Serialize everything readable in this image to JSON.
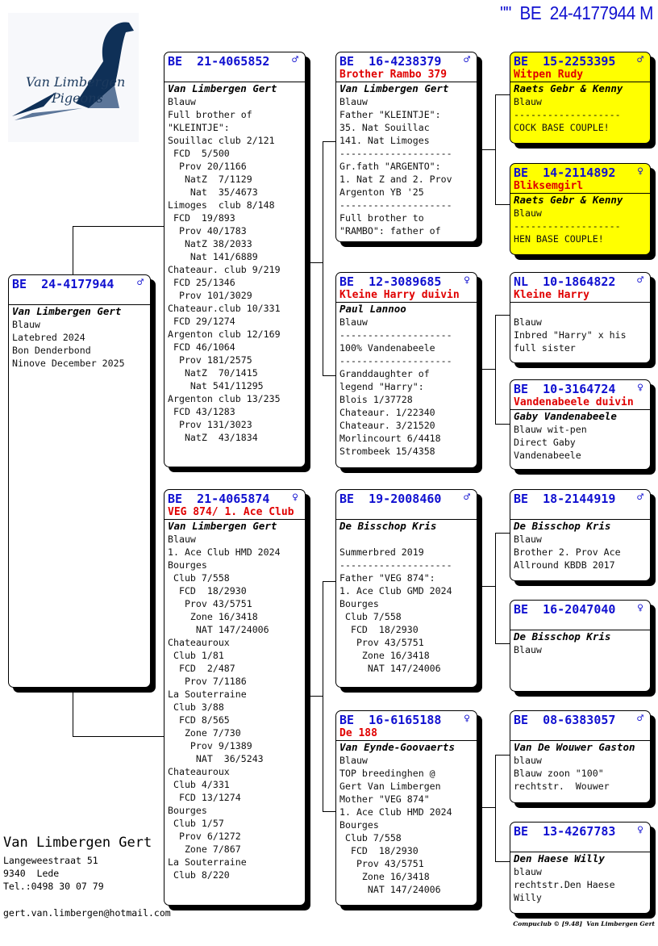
{
  "title": "\"\"  BE  24-4177944 M",
  "logo": {
    "line1": "Van Limbergen",
    "line2": "Pigeons",
    "colors": [
      "#0f3057",
      "#5c7699"
    ]
  },
  "colors": {
    "ring": "#1010d0",
    "name": "#e00000",
    "highlight": "#ffff00"
  },
  "pedigree": [
    {
      "role": "subject",
      "country": "BE",
      "ring": "24-4177944",
      "sex": "♂",
      "name": "",
      "owner": "Van Limbergen Gert",
      "lines": [
        "Blauw",
        "Latebred 2024",
        "Bon Denderbond",
        "Ninove December 2025"
      ]
    },
    {
      "role": "father",
      "country": "BE",
      "ring": "21-4065852",
      "sex": "♂",
      "name": "",
      "owner": "Van Limbergen Gert",
      "lines": [
        "Blauw",
        "Full brother of",
        "\"KLEINTJE\":",
        "Souillac club 2/121",
        " FCD  5/500",
        "  Prov 20/1166",
        "   NatZ  7/1129",
        "    Nat  35/4673",
        "Limoges  club 8/148",
        " FCD  19/893",
        "  Prov 40/1783",
        "   NatZ 38/2033",
        "    Nat 141/6889",
        "Chateaur. club 9/219",
        " FCD 25/1346",
        "  Prov 101/3029",
        "Chateaur.club 10/331",
        " FCD 29/1274",
        "Argenton club 12/169",
        " FCD 46/1064",
        "  Prov 181/2575",
        "   NatZ  70/1415",
        "    Nat 541/11295",
        "Argenton club 13/235",
        " FCD 43/1283",
        "  Prov 131/3023",
        "   NatZ  43/1834"
      ]
    },
    {
      "role": "mother",
      "country": "BE",
      "ring": "21-4065874",
      "sex": "♀",
      "name": "VEG 874/ 1. Ace Club",
      "owner": "Van Limbergen Gert",
      "lines": [
        "Blauw",
        "1. Ace Club HMD 2024",
        "Bourges",
        " Club 7/558",
        "  FCD  18/2930",
        "   Prov 43/5751",
        "    Zone 16/3418",
        "     NAT 147/24006",
        "Chateauroux",
        " Club 1/81",
        "  FCD  2/487",
        "   Prov 7/1186",
        "La Souterraine",
        " Club 3/88",
        "  FCD 8/565",
        "   Zone 7/730",
        "    Prov 9/1389",
        "     NAT  36/5243",
        "Chateauroux",
        " Club 4/331",
        "  FCD 13/1274",
        "Bourges",
        " Club 1/57",
        "  Prov 6/1272",
        "   Zone 7/867",
        "La Souterraine",
        " Club 8/220"
      ]
    },
    {
      "role": "father-father",
      "country": "BE",
      "ring": "16-4238379",
      "sex": "♂",
      "name": "Brother Rambo 379",
      "owner": "Van Limbergen Gert",
      "lines": [
        "Blauw",
        "Father \"KLEINTJE\":",
        "35. Nat Souillac",
        "141. Nat Limoges",
        "--------------------",
        "Gr.fath \"ARGENTO\":",
        "1. Nat Z and 2. Prov",
        "Argenton YB '25",
        "--------------------",
        "Full brother to",
        "\"RAMBO\": father of"
      ]
    },
    {
      "role": "father-mother",
      "country": "BE",
      "ring": "12-3089685",
      "sex": "♀",
      "name": "Kleine Harry duivin",
      "owner": "Paul Lannoo",
      "lines": [
        "Blauw",
        "--------------------",
        "100% Vandenabeele",
        "--------------------",
        "Granddaughter of",
        "legend \"Harry\":",
        "Blois 1/37728",
        "Chateaur. 1/22340",
        "Chateaur. 3/21520",
        "Morlincourt 6/4418",
        "Strombeek 15/4358"
      ]
    },
    {
      "role": "mother-father",
      "country": "BE",
      "ring": "19-2008460",
      "sex": "♂",
      "name": "",
      "owner": "De Bisschop Kris",
      "lines": [
        "",
        "Summerbred 2019",
        "--------------------",
        "Father \"VEG 874\":",
        "1. Ace Club GMD 2024",
        "Bourges",
        " Club 7/558",
        "  FCD  18/2930",
        "   Prov 43/5751",
        "    Zone 16/3418",
        "     NAT 147/24006"
      ]
    },
    {
      "role": "mother-mother",
      "country": "BE",
      "ring": "16-6165188",
      "sex": "♀",
      "name": "De 188",
      "owner": "Van Eynde-Goovaerts",
      "lines": [
        "Blauw",
        "TOP breedinghen @",
        "Gert Van Limbergen",
        "Mother \"VEG 874\"",
        "1. Ace Club HMD 2024",
        "Bourges",
        " Club 7/558",
        "  FCD  18/2930",
        "   Prov 43/5751",
        "    Zone 16/3418",
        "     NAT 147/24006"
      ]
    },
    {
      "role": "ff-father",
      "country": "BE",
      "ring": "15-2253395",
      "sex": "♂",
      "name": "Witpen Rudy",
      "owner": "Raets Gebr & Kenny",
      "highlight": true,
      "lines": [
        "Blauw",
        "-------------------",
        "COCK BASE COUPLE!"
      ]
    },
    {
      "role": "ff-mother",
      "country": "BE",
      "ring": "14-2114892",
      "sex": "♀",
      "name": "Bliksemgirl",
      "owner": "Raets Gebr & Kenny",
      "highlight": true,
      "lines": [
        "Blauw",
        "-------------------",
        "HEN BASE COUPLE!"
      ]
    },
    {
      "role": "fm-father",
      "country": "NL",
      "ring": "10-1864822",
      "sex": "♂",
      "name": "Kleine Harry",
      "owner": "",
      "lines": [
        "Blauw",
        "Inbred \"Harry\" x his",
        "full sister"
      ]
    },
    {
      "role": "fm-mother",
      "country": "BE",
      "ring": "10-3164724",
      "sex": "♀",
      "name": "Vandenabeele duivin",
      "owner": "Gaby Vandenabeele",
      "lines": [
        "Blauw wit-pen",
        "Direct Gaby",
        "Vandenabeele"
      ]
    },
    {
      "role": "mf-father",
      "country": "BE",
      "ring": "18-2144919",
      "sex": "♂",
      "name": "",
      "owner": "De Bisschop Kris",
      "lines": [
        "Blauw",
        "Brother 2. Prov Ace",
        "Allround KBDB 2017"
      ]
    },
    {
      "role": "mf-mother",
      "country": "BE",
      "ring": "16-2047040",
      "sex": "♀",
      "name": "",
      "owner": "De Bisschop Kris",
      "lines": [
        "Blauw"
      ]
    },
    {
      "role": "mm-father",
      "country": "BE",
      "ring": "08-6383057",
      "sex": "♂",
      "name": "",
      "owner": "Van De Wouwer Gaston",
      "lines": [
        "blauw",
        "Blauw zoon \"100\"",
        "rechtstr.  Wouwer"
      ]
    },
    {
      "role": "mm-mother",
      "country": "BE",
      "ring": "13-4267783",
      "sex": "♀",
      "name": "",
      "owner": "Den Haese Willy",
      "lines": [
        "blauw",
        "rechtstr.Den Haese",
        "Willy"
      ]
    }
  ],
  "footer": {
    "name": "Van Limbergen Gert",
    "address": [
      "Langeweestraat 51",
      "9340  Lede",
      "Tel.:0498 30 07 79"
    ],
    "email": "gert.van.limbergen@hotmail.com",
    "credit": "Compuclub © [9.48]  Van Limbergen Gert"
  }
}
